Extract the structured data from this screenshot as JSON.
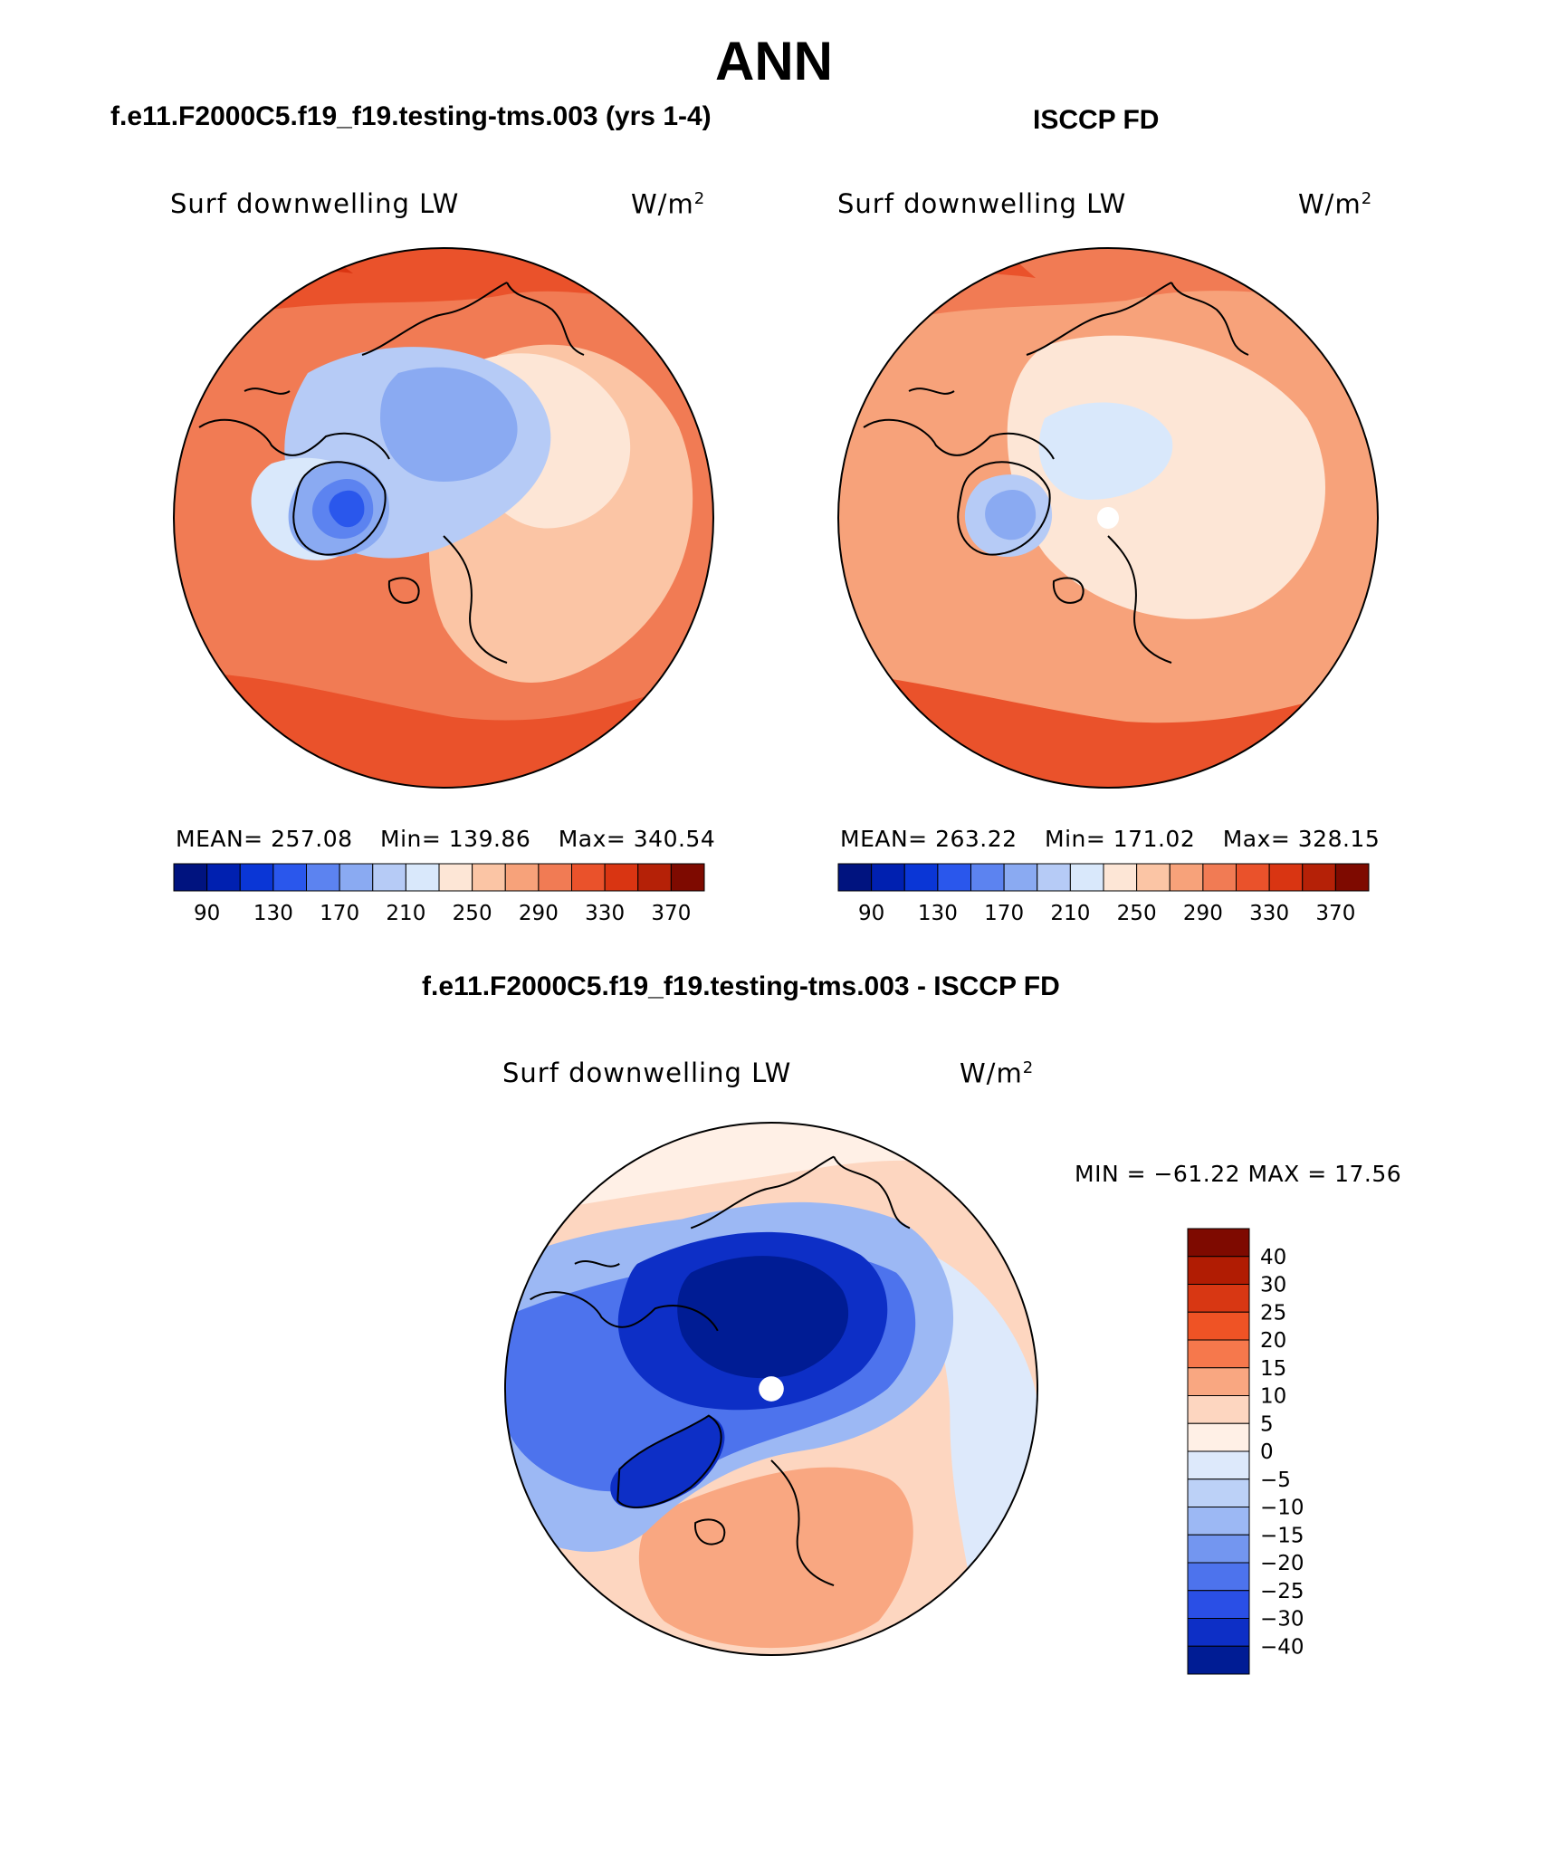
{
  "page_title": "ANN",
  "panels": [
    {
      "heading": "f.e11.F2000C5.f19_f19.testing-tms.003 (yrs 1-4)",
      "variable": "Surf downwelling LW",
      "units_base": "W/m",
      "units_exp": "2",
      "mean": "MEAN= 257.08",
      "min": "Min= 139.86",
      "max": "Max= 340.54"
    },
    {
      "heading": "ISCCP FD",
      "variable": "Surf downwelling LW",
      "units_base": "W/m",
      "units_exp": "2",
      "mean": "MEAN= 263.22",
      "min": "Min= 171.02",
      "max": "Max= 328.15"
    },
    {
      "heading": "f.e11.F2000C5.f19_f19.testing-tms.003 - ISCCP FD",
      "variable": "Surf downwelling LW",
      "units_base": "W/m",
      "units_exp": "2",
      "minmax": "MIN = −61.22 MAX =   17.56"
    }
  ],
  "colorbar_abs": {
    "colors": [
      "#00137f",
      "#0020b0",
      "#0a36d6",
      "#2a57ec",
      "#5c83f0",
      "#8aaaf2",
      "#b6cbf6",
      "#d9e8fb",
      "#fde6d6",
      "#fbc5a5",
      "#f7a27a",
      "#f17b54",
      "#ea522b",
      "#d93512",
      "#b52107",
      "#7e0a00"
    ],
    "labels": [
      "90",
      "130",
      "170",
      "210",
      "250",
      "290",
      "330",
      "370"
    ]
  },
  "colorbar_diff": {
    "colors": [
      "#7e0a00",
      "#b11c03",
      "#d83713",
      "#ef5325",
      "#f6784c",
      "#f9a781",
      "#fdd6c0",
      "#fff0e6",
      "#dde9fb",
      "#bcd1f7",
      "#9cb8f4",
      "#7396f0",
      "#4d73ed",
      "#2a4fe6",
      "#0d2fc6",
      "#001c94"
    ],
    "labels": [
      "40",
      "30",
      "25",
      "20",
      "15",
      "10",
      "5",
      "0",
      "−5",
      "−10",
      "−15",
      "−20",
      "−25",
      "−30",
      "−40"
    ]
  }
}
